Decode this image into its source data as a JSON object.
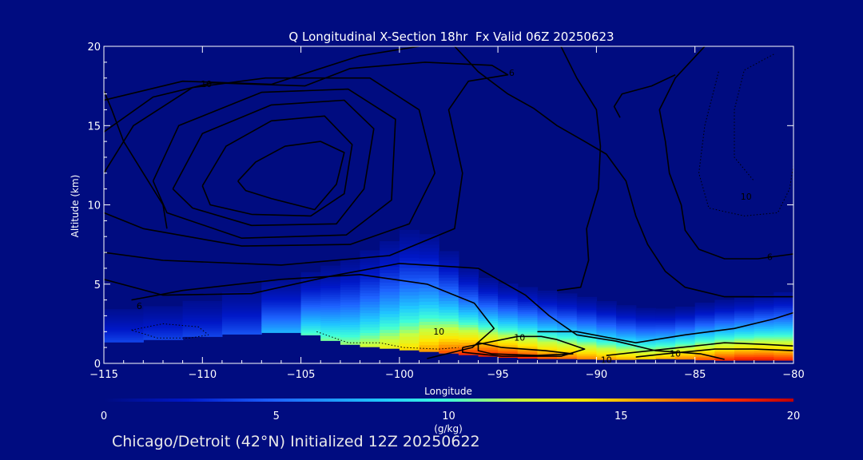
{
  "chart_data": {
    "type": "heatmap",
    "title": "Q Longitudinal X-Section 18hr  Fx Valid 06Z 20250623",
    "xlabel": "Longitude",
    "ylabel": "Altitude (km)",
    "xlim": [
      -115,
      -80
    ],
    "ylim": [
      0,
      20
    ],
    "x_ticks": [
      -115,
      -110,
      -105,
      -100,
      -95,
      -90,
      -85,
      -80
    ],
    "y_ticks": [
      0,
      5,
      10,
      15,
      20
    ],
    "grid": false,
    "fill_variable": {
      "name": "Q",
      "units": "(g/kg)",
      "range": [
        0,
        20
      ],
      "colorbar_ticks": [
        0,
        5,
        10,
        15,
        20
      ]
    },
    "moisture_column": {
      "x": [
        -115,
        -113,
        -111,
        -109,
        -107,
        -105,
        -104,
        -103,
        -102,
        -101,
        -100,
        -99,
        -98,
        -97,
        -96,
        -95,
        -94,
        -93,
        -92,
        -91,
        -90,
        -89,
        -88,
        -87,
        -86,
        -85,
        -84,
        -83,
        -82,
        -81,
        -80
      ],
      "terrain_km": [
        1.3,
        1.4,
        1.6,
        1.8,
        1.9,
        2.0,
        1.6,
        1.3,
        1.1,
        1.0,
        0.9,
        0.8,
        0.7,
        0.6,
        0.5,
        0.4,
        0.35,
        0.3,
        0.3,
        0.3,
        0.25,
        0.25,
        0.25,
        0.3,
        0.3,
        0.25,
        0.2,
        0.2,
        0.2,
        0.2,
        0.2
      ],
      "top_km": [
        4.2,
        4.4,
        4.6,
        5.2,
        5.8,
        6.4,
        6.8,
        7.2,
        7.8,
        8.6,
        9.2,
        9.8,
        8.6,
        7.4,
        6.4,
        5.8,
        5.6,
        5.3,
        5.1,
        4.9,
        4.6,
        4.3,
        4.0,
        3.9,
        3.9,
        4.2,
        4.5,
        4.6,
        4.8,
        5.0,
        5.2
      ],
      "q_max": [
        4,
        4,
        4,
        4,
        5,
        10,
        11,
        11,
        12,
        13,
        14,
        15,
        17,
        18,
        19,
        19,
        19,
        18,
        17,
        17,
        16,
        16,
        15,
        15,
        16,
        17,
        18,
        19,
        19,
        19,
        18
      ]
    },
    "contour_labels": [
      {
        "x": -109.8,
        "y": 17.6,
        "text": "10"
      },
      {
        "x": -98.0,
        "y": 2.0,
        "text": "10"
      },
      {
        "x": -93.9,
        "y": 1.6,
        "text": "10"
      },
      {
        "x": -89.5,
        "y": 0.2,
        "text": "10"
      },
      {
        "x": -86.0,
        "y": 0.6,
        "text": "10"
      },
      {
        "x": -82.4,
        "y": 10.5,
        "text": "10"
      },
      {
        "x": -94.3,
        "y": 18.3,
        "text": "6"
      },
      {
        "x": -113.2,
        "y": 3.6,
        "text": "6"
      },
      {
        "x": -81.2,
        "y": 6.7,
        "text": "6"
      }
    ],
    "contours": [
      {
        "style": "solid",
        "points": [
          [
            -108.2,
            11.5
          ],
          [
            -107.3,
            12.7
          ],
          [
            -105.8,
            13.7
          ],
          [
            -104.0,
            14.0
          ],
          [
            -102.8,
            13.3
          ],
          [
            -103.2,
            11.3
          ],
          [
            -104.3,
            9.7
          ],
          [
            -106.5,
            10.4
          ],
          [
            -107.8,
            10.9
          ],
          [
            -108.2,
            11.5
          ]
        ]
      },
      {
        "style": "solid",
        "points": [
          [
            -110,
            11.2
          ],
          [
            -108.8,
            13.7
          ],
          [
            -106.5,
            15.3
          ],
          [
            -103.8,
            15.6
          ],
          [
            -102.4,
            13.8
          ],
          [
            -102.8,
            10.7
          ],
          [
            -104.5,
            9.3
          ],
          [
            -107.5,
            9.4
          ],
          [
            -109.6,
            10.0
          ],
          [
            -110,
            11.2
          ]
        ]
      },
      {
        "style": "solid",
        "points": [
          [
            -111.5,
            11.0
          ],
          [
            -110.0,
            14.5
          ],
          [
            -106.5,
            16.3
          ],
          [
            -102.8,
            16.6
          ],
          [
            -101.3,
            14.8
          ],
          [
            -101.8,
            11.0
          ],
          [
            -103.2,
            8.8
          ],
          [
            -107.5,
            8.7
          ],
          [
            -110.5,
            9.8
          ],
          [
            -111.5,
            11.0
          ]
        ]
      },
      {
        "style": "solid",
        "points": [
          [
            -112.5,
            11.5
          ],
          [
            -111.2,
            15.0
          ],
          [
            -107.0,
            17.1
          ],
          [
            -102.6,
            17.3
          ],
          [
            -100.2,
            15.4
          ],
          [
            -100.4,
            10.3
          ],
          [
            -102.7,
            8.1
          ],
          [
            -108.0,
            7.9
          ],
          [
            -111.8,
            9.5
          ],
          [
            -112.5,
            11.5
          ]
        ]
      },
      {
        "style": "solid",
        "points": [
          [
            -115,
            12.0
          ],
          [
            -113.5,
            15.0
          ],
          [
            -110.5,
            17.4
          ],
          [
            -106.8,
            18.0
          ],
          [
            -101.5,
            18.0
          ],
          [
            -99.0,
            16.0
          ],
          [
            -98.2,
            12.0
          ],
          [
            -99.5,
            8.8
          ],
          [
            -102.5,
            7.5
          ],
          [
            -108.0,
            7.4
          ],
          [
            -113.0,
            8.5
          ],
          [
            -115,
            9.5
          ]
        ]
      },
      {
        "style": "solid",
        "points": [
          [
            -115,
            14.6
          ],
          [
            -112.5,
            16.8
          ],
          [
            -109.5,
            17.7
          ],
          [
            -104.8,
            17.5
          ],
          [
            -102.5,
            18.6
          ],
          [
            -98.7,
            19.0
          ],
          [
            -95.3,
            18.8
          ],
          [
            -94.5,
            18.2
          ],
          [
            -96.5,
            17.8
          ],
          [
            -97.5,
            16.0
          ],
          [
            -96.8,
            12.0
          ],
          [
            -97.2,
            8.5
          ],
          [
            -100.5,
            6.8
          ],
          [
            -106.0,
            6.2
          ],
          [
            -112.0,
            6.5
          ],
          [
            -115,
            7.0
          ]
        ]
      },
      {
        "style": "solid",
        "points": [
          [
            -115,
            16.6
          ],
          [
            -111.0,
            17.8
          ],
          [
            -106.5,
            17.6
          ],
          [
            -102.0,
            19.4
          ],
          [
            -99.0,
            20.0
          ]
        ]
      },
      {
        "style": "solid",
        "points": [
          [
            -113.6,
            4.0
          ],
          [
            -111.0,
            4.6
          ],
          [
            -106.0,
            5.3
          ],
          [
            -102.0,
            5.6
          ],
          [
            -98.6,
            5.0
          ],
          [
            -96.2,
            3.8
          ],
          [
            -95.2,
            2.2
          ],
          [
            -96.3,
            1.0
          ],
          [
            -98.6,
            0.3
          ]
        ]
      },
      {
        "style": "solid",
        "points": [
          [
            -115,
            5.3
          ],
          [
            -112.0,
            4.3
          ],
          [
            -107.5,
            4.4
          ],
          [
            -103.5,
            5.5
          ],
          [
            -100.0,
            6.3
          ],
          [
            -96.0,
            6.0
          ],
          [
            -93.6,
            4.3
          ],
          [
            -92.4,
            3.0
          ],
          [
            -91.0,
            1.8
          ],
          [
            -89.0,
            1.4
          ],
          [
            -87.0,
            0.8
          ],
          [
            -84.7,
            0.6
          ],
          [
            -83.5,
            0.25
          ]
        ]
      },
      {
        "style": "solid",
        "points": [
          [
            -96.0,
            1.3
          ],
          [
            -94.8,
            1.0
          ],
          [
            -92.6,
            0.8
          ],
          [
            -91.2,
            0.6
          ],
          [
            -93.0,
            0.5
          ],
          [
            -95.3,
            0.6
          ],
          [
            -96.0,
            0.8
          ],
          [
            -96.0,
            1.3
          ]
        ]
      },
      {
        "style": "solid",
        "points": [
          [
            -96.8,
            1.0
          ],
          [
            -94.0,
            1.7
          ],
          [
            -92.8,
            1.7
          ],
          [
            -92.0,
            1.5
          ],
          [
            -90.6,
            0.9
          ],
          [
            -91.8,
            0.45
          ],
          [
            -94.8,
            0.45
          ],
          [
            -96.8,
            0.7
          ],
          [
            -96.8,
            1.0
          ]
        ]
      },
      {
        "style": "solid",
        "points": [
          [
            -89.5,
            0.5
          ],
          [
            -88.0,
            0.7
          ],
          [
            -85.0,
            1.1
          ],
          [
            -83.5,
            1.3
          ],
          [
            -81.5,
            1.2
          ],
          [
            -80.0,
            1.1
          ]
        ]
      },
      {
        "style": "solid",
        "points": [
          [
            -88.0,
            0.4
          ],
          [
            -86.5,
            0.6
          ],
          [
            -84.0,
            0.9
          ],
          [
            -82.0,
            0.9
          ],
          [
            -80.0,
            0.8
          ]
        ]
      },
      {
        "style": "solid",
        "points": [
          [
            -93.0,
            2.0
          ],
          [
            -91.0,
            2.0
          ],
          [
            -88.0,
            1.3
          ],
          [
            -85.5,
            1.8
          ],
          [
            -83.0,
            2.2
          ],
          [
            -81.0,
            2.8
          ],
          [
            -80.0,
            3.2
          ]
        ]
      },
      {
        "style": "solid",
        "points": [
          [
            -97.2,
            20.0
          ],
          [
            -96.0,
            18.4
          ],
          [
            -94.5,
            17.0
          ],
          [
            -93.2,
            16.1
          ],
          [
            -92.0,
            15.0
          ],
          [
            -90.6,
            14.0
          ],
          [
            -89.5,
            13.2
          ],
          [
            -88.5,
            11.5
          ],
          [
            -88.0,
            9.3
          ],
          [
            -87.4,
            7.5
          ],
          [
            -86.5,
            5.8
          ],
          [
            -85.5,
            4.8
          ],
          [
            -83.5,
            4.2
          ],
          [
            -80.0,
            4.2
          ]
        ]
      },
      {
        "style": "solid",
        "points": [
          [
            -91.8,
            20.0
          ],
          [
            -91.0,
            18.0
          ],
          [
            -90.0,
            16.0
          ],
          [
            -89.8,
            13.7
          ],
          [
            -89.9,
            11.0
          ],
          [
            -90.5,
            8.5
          ],
          [
            -90.4,
            6.5
          ],
          [
            -90.8,
            4.8
          ],
          [
            -92.0,
            4.6
          ]
        ]
      },
      {
        "style": "solid",
        "points": [
          [
            -84.5,
            20.0
          ],
          [
            -86.0,
            18.0
          ],
          [
            -86.8,
            16.0
          ],
          [
            -86.5,
            14.0
          ],
          [
            -86.3,
            12.0
          ],
          [
            -85.7,
            10.0
          ],
          [
            -85.5,
            8.4
          ],
          [
            -84.8,
            7.2
          ],
          [
            -83.5,
            6.6
          ],
          [
            -81.8,
            6.6
          ],
          [
            -80.0,
            6.9
          ]
        ]
      },
      {
        "style": "solid",
        "points": [
          [
            -86.0,
            18.2
          ],
          [
            -87.2,
            17.5
          ],
          [
            -88.7,
            17.0
          ],
          [
            -89.1,
            16.2
          ],
          [
            -88.8,
            15.5
          ]
        ]
      },
      {
        "style": "solid",
        "points": [
          [
            -115,
            17.2
          ],
          [
            -114.6,
            16.0
          ],
          [
            -114.0,
            14.0
          ],
          [
            -113.0,
            12.0
          ],
          [
            -112.0,
            10.0
          ],
          [
            -111.8,
            8.5
          ]
        ]
      },
      {
        "style": "dotted",
        "points": [
          [
            -83.8,
            18.4
          ],
          [
            -84.5,
            15.0
          ],
          [
            -84.8,
            12.0
          ],
          [
            -84.3,
            9.8
          ],
          [
            -82.5,
            9.3
          ],
          [
            -80.8,
            9.5
          ],
          [
            -80.2,
            11.0
          ],
          [
            -80.0,
            12.5
          ]
        ]
      },
      {
        "style": "dotted",
        "points": [
          [
            -81.0,
            19.5
          ],
          [
            -82.5,
            18.5
          ],
          [
            -83.0,
            16.0
          ],
          [
            -83.0,
            13.0
          ],
          [
            -82.0,
            11.5
          ]
        ]
      },
      {
        "style": "dotted",
        "points": [
          [
            -113.6,
            2.1
          ],
          [
            -112.0,
            2.5
          ],
          [
            -110.2,
            2.3
          ],
          [
            -109.7,
            1.8
          ],
          [
            -110.6,
            1.6
          ],
          [
            -112.3,
            1.6
          ],
          [
            -113.6,
            2.1
          ]
        ]
      },
      {
        "style": "dotted",
        "points": [
          [
            -104.2,
            2.0
          ],
          [
            -102.6,
            1.3
          ],
          [
            -101.0,
            1.3
          ],
          [
            -99.8,
            1.0
          ],
          [
            -98.0,
            0.9
          ],
          [
            -97.0,
            1.0
          ]
        ]
      }
    ]
  },
  "footer": {
    "caption": "Chicago/Detroit (42°N) Initialized 12Z 20250622"
  },
  "colors": {
    "background": "#000c80",
    "axis": "#ffffff",
    "contour": "#000000"
  }
}
